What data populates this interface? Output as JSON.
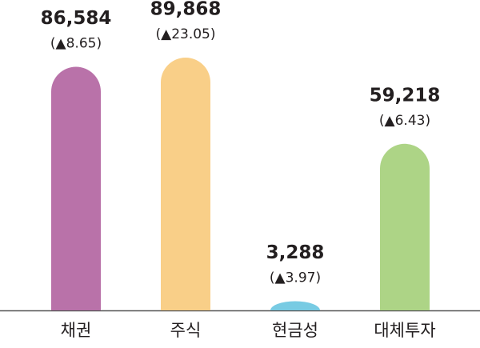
{
  "chart_data": {
    "type": "bar",
    "categories": [
      "채권",
      "주식",
      "현금성",
      "대체투자"
    ],
    "values": [
      86584,
      89868,
      3288,
      59218
    ],
    "value_labels": [
      "86,584",
      "89,868",
      "3,288",
      "59,218"
    ],
    "annotations": [
      "(▲8.65)",
      "(▲23.05)",
      "(▲3.97)",
      "(▲6.43)"
    ],
    "colors": [
      "#b972a9",
      "#f9cf88",
      "#78cbe3",
      "#add486"
    ]
  }
}
